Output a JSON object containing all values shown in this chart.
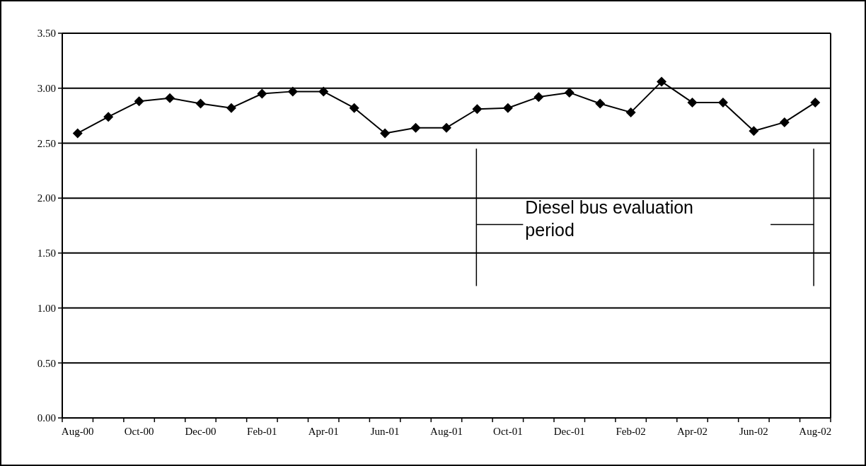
{
  "chart_data": {
    "type": "line",
    "categories": [
      "Aug-00",
      null,
      "Oct-00",
      null,
      "Dec-00",
      null,
      "Feb-01",
      null,
      "Apr-01",
      null,
      "Jun-01",
      null,
      "Aug-01",
      null,
      "Oct-01",
      null,
      "Dec-01",
      null,
      "Feb-02",
      null,
      "Apr-02",
      null,
      "Jun-02",
      null,
      "Aug-02"
    ],
    "series": [
      {
        "color": "#000000",
        "values": [
          2.59,
          2.74,
          2.88,
          2.91,
          2.86,
          2.82,
          2.95,
          2.97,
          2.97,
          2.82,
          2.59,
          2.64,
          2.64,
          2.81,
          2.82,
          2.92,
          2.96,
          2.86,
          2.78,
          3.06,
          2.87,
          2.87,
          2.61,
          2.69,
          2.87
        ]
      }
    ],
    "ylim": [
      0,
      3.5
    ],
    "yticks": [
      {
        "value": 0,
        "label": "0.00"
      },
      {
        "value": 0.5,
        "label": "0.50"
      },
      {
        "value": 1,
        "label": "1.00"
      },
      {
        "value": 1.5,
        "label": "1.50"
      },
      {
        "value": 2,
        "label": "2.00"
      },
      {
        "value": 2.5,
        "label": "2.50"
      },
      {
        "value": 3,
        "label": "3.00"
      },
      {
        "value": 3.5,
        "label": "3.50"
      }
    ],
    "grid": "y",
    "marker": "diamond",
    "line_style": "solid",
    "annotations": [
      "Diesel bus evaluation period"
    ]
  }
}
